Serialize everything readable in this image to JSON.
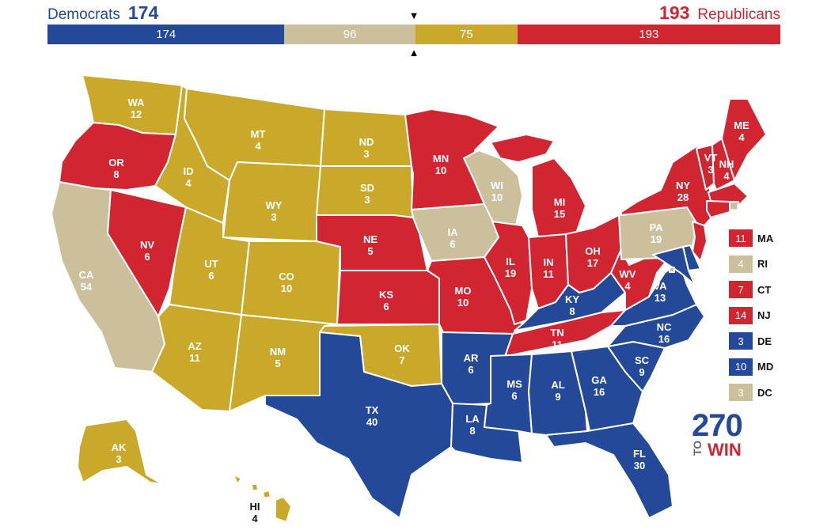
{
  "colors": {
    "dem": "#244999",
    "rep": "#d22532",
    "tossup": "#cbbf9c",
    "other": "#c9a82a",
    "white": "#ffffff"
  },
  "header": {
    "dem_label": "Democrats",
    "dem_count": "174",
    "rep_label": "Republicans",
    "rep_count": "193",
    "marker_down": "▼",
    "marker_up": "▲"
  },
  "bar": [
    {
      "value": 174,
      "label": "174",
      "status": "dem"
    },
    {
      "value": 96,
      "label": "96",
      "status": "tossup"
    },
    {
      "value": 75,
      "label": "75",
      "status": "other"
    },
    {
      "value": 193,
      "label": "193",
      "status": "rep"
    }
  ],
  "states": [
    {
      "abbr": "WA",
      "ev": "12",
      "status": "other"
    },
    {
      "abbr": "OR",
      "ev": "8",
      "status": "rep"
    },
    {
      "abbr": "CA",
      "ev": "54",
      "status": "tossup"
    },
    {
      "abbr": "NV",
      "ev": "6",
      "status": "rep"
    },
    {
      "abbr": "ID",
      "ev": "4",
      "status": "other"
    },
    {
      "abbr": "MT",
      "ev": "4",
      "status": "other"
    },
    {
      "abbr": "WY",
      "ev": "3",
      "status": "other"
    },
    {
      "abbr": "UT",
      "ev": "6",
      "status": "other"
    },
    {
      "abbr": "AZ",
      "ev": "11",
      "status": "other"
    },
    {
      "abbr": "CO",
      "ev": "10",
      "status": "other"
    },
    {
      "abbr": "NM",
      "ev": "5",
      "status": "other"
    },
    {
      "abbr": "ND",
      "ev": "3",
      "status": "other"
    },
    {
      "abbr": "SD",
      "ev": "3",
      "status": "other"
    },
    {
      "abbr": "NE",
      "ev": "5",
      "status": "rep"
    },
    {
      "abbr": "KS",
      "ev": "6",
      "status": "rep"
    },
    {
      "abbr": "OK",
      "ev": "7",
      "status": "other"
    },
    {
      "abbr": "TX",
      "ev": "40",
      "status": "dem"
    },
    {
      "abbr": "MN",
      "ev": "10",
      "status": "rep"
    },
    {
      "abbr": "IA",
      "ev": "6",
      "status": "tossup"
    },
    {
      "abbr": "MO",
      "ev": "10",
      "status": "rep"
    },
    {
      "abbr": "AR",
      "ev": "6",
      "status": "dem"
    },
    {
      "abbr": "LA",
      "ev": "8",
      "status": "dem"
    },
    {
      "abbr": "WI",
      "ev": "10",
      "status": "tossup"
    },
    {
      "abbr": "IL",
      "ev": "19",
      "status": "rep"
    },
    {
      "abbr": "MI",
      "ev": "15",
      "status": "rep"
    },
    {
      "abbr": "IN",
      "ev": "11",
      "status": "rep"
    },
    {
      "abbr": "OH",
      "ev": "17",
      "status": "rep"
    },
    {
      "abbr": "KY",
      "ev": "8",
      "status": "dem"
    },
    {
      "abbr": "TN",
      "ev": "11",
      "status": "rep"
    },
    {
      "abbr": "MS",
      "ev": "6",
      "status": "dem"
    },
    {
      "abbr": "AL",
      "ev": "9",
      "status": "dem"
    },
    {
      "abbr": "GA",
      "ev": "16",
      "status": "dem"
    },
    {
      "abbr": "FL",
      "ev": "30",
      "status": "dem"
    },
    {
      "abbr": "SC",
      "ev": "9",
      "status": "dem"
    },
    {
      "abbr": "NC",
      "ev": "16",
      "status": "dem"
    },
    {
      "abbr": "VA",
      "ev": "13",
      "status": "dem"
    },
    {
      "abbr": "WV",
      "ev": "4",
      "status": "rep"
    },
    {
      "abbr": "PA",
      "ev": "19",
      "status": "tossup"
    },
    {
      "abbr": "NY",
      "ev": "28",
      "status": "rep"
    },
    {
      "abbr": "VT",
      "ev": "3",
      "status": "rep"
    },
    {
      "abbr": "NH",
      "ev": "4",
      "status": "rep"
    },
    {
      "abbr": "ME",
      "ev": "4",
      "status": "rep"
    },
    {
      "abbr": "AK",
      "ev": "3",
      "status": "other"
    },
    {
      "abbr": "HI",
      "ev": "4",
      "status": "other"
    }
  ],
  "legend": [
    {
      "abbr": "MA",
      "ev": "11",
      "status": "rep"
    },
    {
      "abbr": "RI",
      "ev": "4",
      "status": "tossup"
    },
    {
      "abbr": "CT",
      "ev": "7",
      "status": "rep"
    },
    {
      "abbr": "NJ",
      "ev": "14",
      "status": "rep"
    },
    {
      "abbr": "DE",
      "ev": "3",
      "status": "dem"
    },
    {
      "abbr": "MD",
      "ev": "10",
      "status": "dem"
    },
    {
      "abbr": "DC",
      "ev": "3",
      "status": "tossup"
    }
  ],
  "logo": {
    "number": "270",
    "to": "TO",
    "win": "WIN"
  }
}
